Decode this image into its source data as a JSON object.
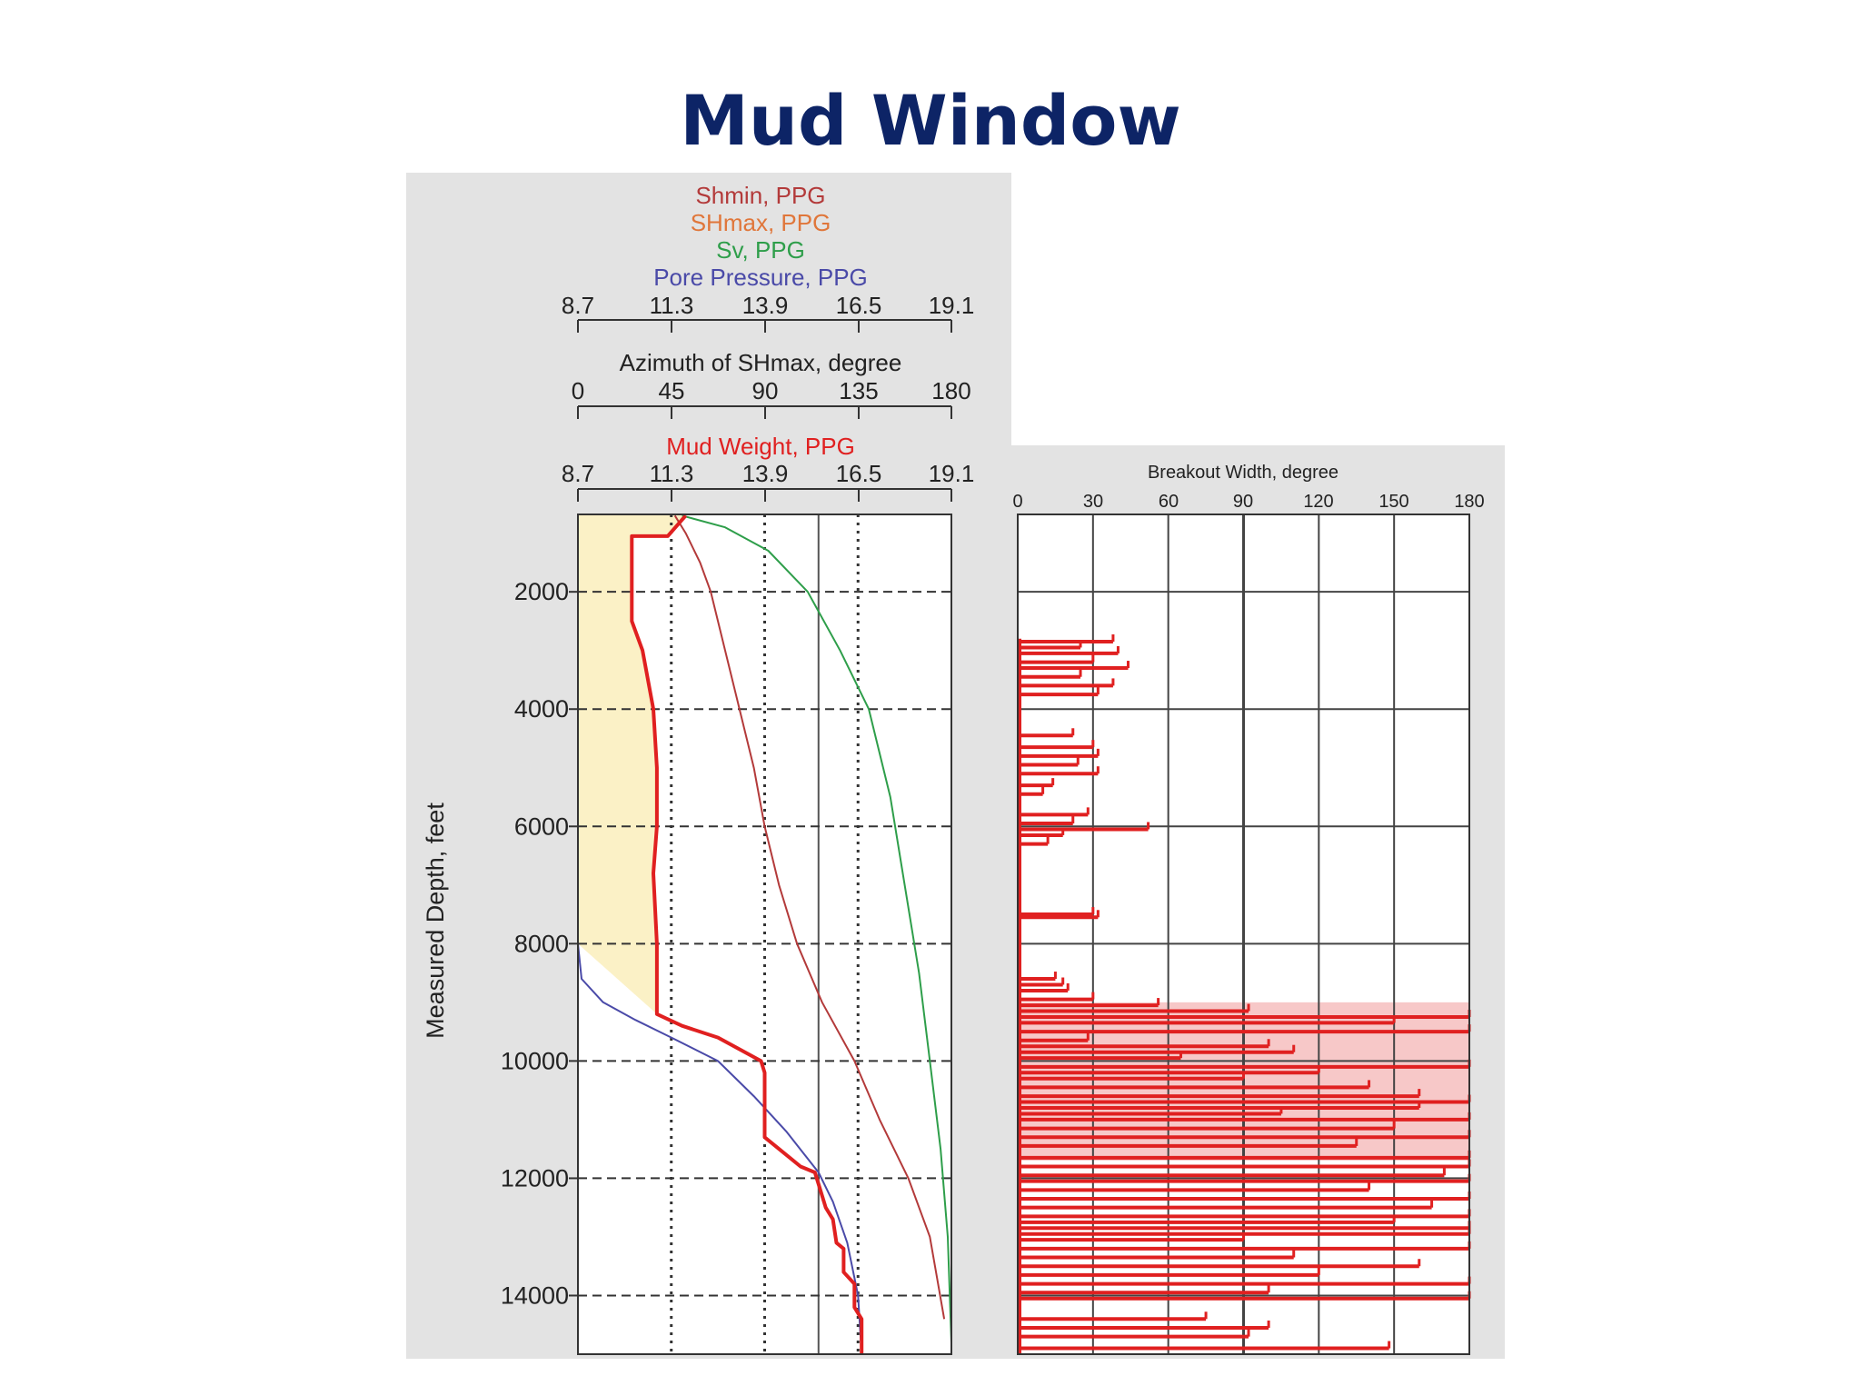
{
  "slide": {
    "title": "Mud Window"
  },
  "colors": {
    "shmin": "#b33a3a",
    "shmax": "#e0763a",
    "sv": "#2e9e4a",
    "pore_pressure": "#4a4aa8",
    "mud_weight": "#e02020",
    "breakout": "#e02020",
    "window_fill": "#fbf1c6",
    "breakout_fill": "#f7c8c8",
    "panel_bg": "#e3e3e3"
  },
  "chart_data": [
    {
      "type": "line",
      "legend": [
        {
          "name": "Shmin, PPG",
          "color": "#b33a3a"
        },
        {
          "name": "SHmax, PPG",
          "color": "#e0763a"
        },
        {
          "name": "Sv, PPG",
          "color": "#2e9e4a"
        },
        {
          "name": "Pore Pressure, PPG",
          "color": "#4a4aa8"
        }
      ],
      "top_axis": {
        "ticks": [
          "8.7",
          "11.3",
          "13.9",
          "16.5",
          "19.1"
        ],
        "range": [
          8.7,
          19.1
        ]
      },
      "azimuth_axis": {
        "label": "Azimuth of SHmax, degree",
        "ticks": [
          "0",
          "45",
          "90",
          "135",
          "180"
        ],
        "range": [
          0,
          180
        ]
      },
      "mud_axis": {
        "label": "Mud Weight, PPG",
        "ticks": [
          "8.7",
          "11.3",
          "13.9",
          "16.5",
          "19.1"
        ],
        "range": [
          8.7,
          19.1
        ]
      },
      "ylabel": "Measured Depth, feet",
      "yticks": [
        "2000",
        "4000",
        "6000",
        "8000",
        "10000",
        "12000",
        "14000"
      ],
      "ylim": [
        680,
        15000
      ],
      "series": [
        {
          "name": "Shmin, PPG",
          "color": "#b33a3a",
          "x": [
            11.4,
            11.7,
            12.1,
            12.4,
            12.8,
            13.2,
            13.6,
            13.9,
            14.3,
            14.8,
            15.5,
            16.4,
            17.1,
            17.9,
            18.5,
            18.9
          ],
          "y": [
            700,
            1000,
            1500,
            2000,
            3000,
            4000,
            5000,
            6000,
            7000,
            8000,
            9000,
            10000,
            11000,
            12000,
            13000,
            14400
          ]
        },
        {
          "name": "Sv, PPG",
          "color": "#2e9e4a",
          "x": [
            11.6,
            12.8,
            14.0,
            15.1,
            16.0,
            16.8,
            17.4,
            17.8,
            18.2,
            18.5,
            18.8,
            19.0,
            19.1
          ],
          "y": [
            700,
            900,
            1300,
            2000,
            3000,
            4000,
            5500,
            7000,
            8500,
            10000,
            11500,
            13000,
            14800
          ]
        },
        {
          "name": "Pore Pressure, PPG",
          "color": "#4a4aa8",
          "x": [
            8.7,
            8.8,
            9.4,
            10.3,
            11.3,
            12.6,
            13.6,
            14.5,
            15.4,
            15.8,
            16.2,
            16.5,
            16.6
          ],
          "y": [
            8000,
            8600,
            9000,
            9300,
            9600,
            10000,
            10600,
            11200,
            11900,
            12400,
            13100,
            14000,
            15000
          ]
        },
        {
          "name": "Mud Weight, PPG",
          "color": "#e02020",
          "x": [
            11.7,
            11.2,
            10.2,
            10.2,
            10.5,
            10.8,
            10.9,
            10.9,
            10.8,
            10.9,
            10.9,
            11.6,
            12.6,
            13.8,
            13.9,
            13.9,
            14.9,
            15.3,
            15.4,
            15.6,
            15.8,
            15.9,
            16.1,
            16.1,
            16.4,
            16.4,
            16.6,
            16.6
          ],
          "y": [
            700,
            1050,
            1050,
            2500,
            3000,
            4000,
            5000,
            6000,
            6800,
            8000,
            9200,
            9400,
            9600,
            10000,
            10200,
            11300,
            11800,
            11900,
            12100,
            12500,
            12700,
            13100,
            13200,
            13600,
            13800,
            14200,
            14400,
            15000
          ]
        }
      ]
    },
    {
      "type": "bar",
      "title": "Breakout Width, degree",
      "xticks": [
        "0",
        "30",
        "60",
        "90",
        "120",
        "150",
        "180"
      ],
      "xlim": [
        0,
        180
      ],
      "ylim": [
        680,
        15000
      ],
      "bars": [
        {
          "y": 2850,
          "x": 38
        },
        {
          "y": 2950,
          "x": 25
        },
        {
          "y": 3050,
          "x": 40
        },
        {
          "y": 3200,
          "x": 30
        },
        {
          "y": 3300,
          "x": 44
        },
        {
          "y": 3450,
          "x": 25
        },
        {
          "y": 3600,
          "x": 38
        },
        {
          "y": 3750,
          "x": 32
        },
        {
          "y": 4450,
          "x": 22
        },
        {
          "y": 4650,
          "x": 30
        },
        {
          "y": 4800,
          "x": 32
        },
        {
          "y": 4950,
          "x": 24
        },
        {
          "y": 5100,
          "x": 32
        },
        {
          "y": 5300,
          "x": 14
        },
        {
          "y": 5450,
          "x": 10
        },
        {
          "y": 5800,
          "x": 28
        },
        {
          "y": 5950,
          "x": 22
        },
        {
          "y": 6050,
          "x": 52
        },
        {
          "y": 6150,
          "x": 18
        },
        {
          "y": 6300,
          "x": 12
        },
        {
          "y": 7500,
          "x": 30
        },
        {
          "y": 7550,
          "x": 32
        },
        {
          "y": 8600,
          "x": 15
        },
        {
          "y": 8700,
          "x": 18
        },
        {
          "y": 8800,
          "x": 20
        },
        {
          "y": 8950,
          "x": 30
        },
        {
          "y": 9050,
          "x": 56
        },
        {
          "y": 9150,
          "x": 92
        },
        {
          "y": 9250,
          "x": 180
        },
        {
          "y": 9350,
          "x": 150
        },
        {
          "y": 9500,
          "x": 180
        },
        {
          "y": 9650,
          "x": 28
        },
        {
          "y": 9750,
          "x": 100
        },
        {
          "y": 9850,
          "x": 110
        },
        {
          "y": 9950,
          "x": 65
        },
        {
          "y": 10100,
          "x": 180
        },
        {
          "y": 10200,
          "x": 120
        },
        {
          "y": 10300,
          "x": 90
        },
        {
          "y": 10450,
          "x": 140
        },
        {
          "y": 10600,
          "x": 160
        },
        {
          "y": 10700,
          "x": 180
        },
        {
          "y": 10800,
          "x": 160
        },
        {
          "y": 10900,
          "x": 105
        },
        {
          "y": 11000,
          "x": 180
        },
        {
          "y": 11150,
          "x": 150
        },
        {
          "y": 11300,
          "x": 180
        },
        {
          "y": 11450,
          "x": 135
        },
        {
          "y": 11650,
          "x": 180
        },
        {
          "y": 11800,
          "x": 180
        },
        {
          "y": 11950,
          "x": 170
        },
        {
          "y": 12050,
          "x": 180
        },
        {
          "y": 12200,
          "x": 140
        },
        {
          "y": 12350,
          "x": 180
        },
        {
          "y": 12500,
          "x": 165
        },
        {
          "y": 12650,
          "x": 180
        },
        {
          "y": 12750,
          "x": 150
        },
        {
          "y": 12850,
          "x": 180
        },
        {
          "y": 12950,
          "x": 180
        },
        {
          "y": 13050,
          "x": 90
        },
        {
          "y": 13200,
          "x": 180
        },
        {
          "y": 13350,
          "x": 110
        },
        {
          "y": 13500,
          "x": 160
        },
        {
          "y": 13650,
          "x": 120
        },
        {
          "y": 13800,
          "x": 180
        },
        {
          "y": 13950,
          "x": 100
        },
        {
          "y": 14050,
          "x": 180
        },
        {
          "y": 14400,
          "x": 75
        },
        {
          "y": 14550,
          "x": 100
        },
        {
          "y": 14700,
          "x": 92
        },
        {
          "y": 14900,
          "x": 148
        }
      ]
    }
  ]
}
